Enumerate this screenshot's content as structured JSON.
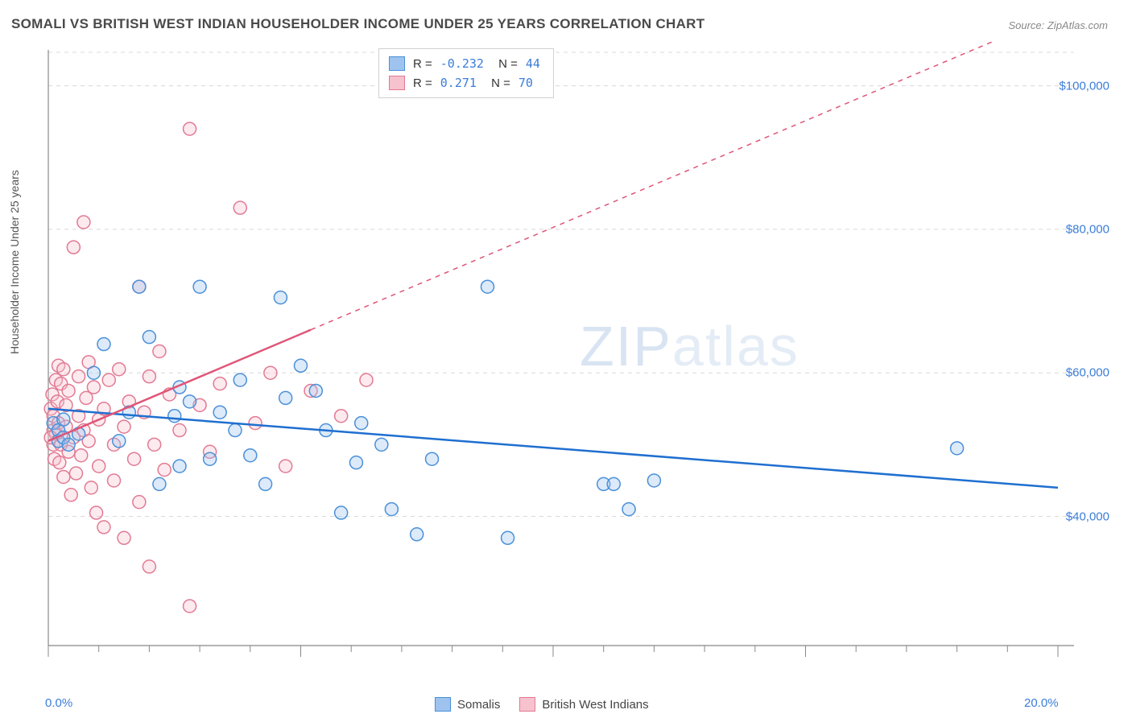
{
  "title": "SOMALI VS BRITISH WEST INDIAN HOUSEHOLDER INCOME UNDER 25 YEARS CORRELATION CHART",
  "source_label": "Source: ZipAtlas.com",
  "ylabel": "Householder Income Under 25 years",
  "watermark_bold": "ZIP",
  "watermark_thin": "atlas",
  "chart": {
    "type": "scatter",
    "background_color": "#ffffff",
    "grid_color": "#d8d8d8",
    "grid_dash": "5,5",
    "axis_color": "#888888",
    "xlim": [
      0,
      20
    ],
    "ylim": [
      22000,
      105000
    ],
    "x_ticks_minor": [
      0,
      1,
      2,
      3,
      4,
      5,
      6,
      7,
      8,
      9,
      10,
      11,
      12,
      13,
      14,
      15,
      16,
      17,
      18,
      19,
      20
    ],
    "x_ticks_major": [
      0,
      5,
      10,
      15,
      20
    ],
    "x_tick_labels": {
      "0": "0.0%",
      "20": "20.0%"
    },
    "y_grid": [
      40000,
      60000,
      80000,
      100000
    ],
    "y_tick_labels": {
      "40000": "$40,000",
      "60000": "$60,000",
      "80000": "$80,000",
      "100000": "$100,000"
    },
    "marker_radius": 8,
    "marker_stroke_width": 1.5,
    "marker_fill_opacity": 0.35,
    "trend_line_width": 2.5,
    "series": {
      "somalis": {
        "label": "Somalis",
        "fill": "#9dc3ee",
        "stroke": "#4a90d9",
        "line_color": "#1f6fd0",
        "R": "-0.232",
        "N": "44",
        "trend": {
          "x1": 0,
          "y1": 55000,
          "x2": 20,
          "y2": 44000,
          "dash": null
        },
        "points": [
          [
            0.1,
            53000
          ],
          [
            0.2,
            50500
          ],
          [
            0.2,
            52000
          ],
          [
            0.3,
            51000
          ],
          [
            0.3,
            53500
          ],
          [
            0.4,
            50000
          ],
          [
            0.9,
            60000
          ],
          [
            1.1,
            64000
          ],
          [
            1.4,
            50500
          ],
          [
            1.6,
            54500
          ],
          [
            1.8,
            72000
          ],
          [
            2.0,
            65000
          ],
          [
            2.2,
            44500
          ],
          [
            2.5,
            54000
          ],
          [
            2.6,
            58000
          ],
          [
            2.6,
            47000
          ],
          [
            2.8,
            56000
          ],
          [
            3.0,
            72000
          ],
          [
            3.2,
            48000
          ],
          [
            3.4,
            54500
          ],
          [
            3.7,
            52000
          ],
          [
            3.8,
            59000
          ],
          [
            4.0,
            48500
          ],
          [
            4.3,
            44500
          ],
          [
            4.6,
            70500
          ],
          [
            4.7,
            56500
          ],
          [
            5.0,
            61000
          ],
          [
            5.3,
            57500
          ],
          [
            5.5,
            52000
          ],
          [
            5.8,
            40500
          ],
          [
            6.1,
            47500
          ],
          [
            6.2,
            53000
          ],
          [
            6.6,
            50000
          ],
          [
            6.8,
            41000
          ],
          [
            7.3,
            37500
          ],
          [
            7.6,
            48000
          ],
          [
            8.7,
            72000
          ],
          [
            9.1,
            37000
          ],
          [
            11.0,
            44500
          ],
          [
            11.2,
            44500
          ],
          [
            11.5,
            41000
          ],
          [
            12.0,
            45000
          ],
          [
            18.0,
            49500
          ],
          [
            0.6,
            51500
          ]
        ]
      },
      "bwi": {
        "label": "British West Indians",
        "fill": "#f6c2cd",
        "stroke": "#e27a93",
        "line_color": "#e05577",
        "R": "0.271",
        "N": "70",
        "trend_solid": {
          "x1": 0,
          "y1": 50500,
          "x2": 5.2,
          "y2": 66000
        },
        "trend_dash": {
          "x1": 5.2,
          "y1": 66000,
          "x2": 20,
          "y2": 110000,
          "dash": "6,6"
        },
        "points": [
          [
            0.05,
            55000
          ],
          [
            0.08,
            57000
          ],
          [
            0.1,
            52000
          ],
          [
            0.1,
            50000
          ],
          [
            0.1,
            54000
          ],
          [
            0.12,
            48000
          ],
          [
            0.15,
            59000
          ],
          [
            0.15,
            51500
          ],
          [
            0.18,
            56000
          ],
          [
            0.2,
            53000
          ],
          [
            0.2,
            61000
          ],
          [
            0.22,
            47500
          ],
          [
            0.25,
            58500
          ],
          [
            0.25,
            50000
          ],
          [
            0.3,
            45500
          ],
          [
            0.3,
            60500
          ],
          [
            0.35,
            52500
          ],
          [
            0.35,
            55500
          ],
          [
            0.4,
            49000
          ],
          [
            0.4,
            57500
          ],
          [
            0.45,
            43000
          ],
          [
            0.5,
            51000
          ],
          [
            0.5,
            77500
          ],
          [
            0.55,
            46000
          ],
          [
            0.6,
            54000
          ],
          [
            0.6,
            59500
          ],
          [
            0.65,
            48500
          ],
          [
            0.7,
            81000
          ],
          [
            0.7,
            52000
          ],
          [
            0.75,
            56500
          ],
          [
            0.8,
            50500
          ],
          [
            0.8,
            61500
          ],
          [
            0.85,
            44000
          ],
          [
            0.9,
            58000
          ],
          [
            0.95,
            40500
          ],
          [
            1.0,
            53500
          ],
          [
            1.0,
            47000
          ],
          [
            1.1,
            55000
          ],
          [
            1.1,
            38500
          ],
          [
            1.2,
            59000
          ],
          [
            1.3,
            50000
          ],
          [
            1.3,
            45000
          ],
          [
            1.4,
            60500
          ],
          [
            1.5,
            52500
          ],
          [
            1.5,
            37000
          ],
          [
            1.6,
            56000
          ],
          [
            1.7,
            48000
          ],
          [
            1.8,
            72000
          ],
          [
            1.8,
            42000
          ],
          [
            1.9,
            54500
          ],
          [
            2.0,
            59500
          ],
          [
            2.0,
            33000
          ],
          [
            2.1,
            50000
          ],
          [
            2.2,
            63000
          ],
          [
            2.3,
            46500
          ],
          [
            2.4,
            57000
          ],
          [
            2.6,
            52000
          ],
          [
            2.8,
            27500
          ],
          [
            2.8,
            94000
          ],
          [
            3.0,
            55500
          ],
          [
            3.2,
            49000
          ],
          [
            3.4,
            58500
          ],
          [
            3.8,
            83000
          ],
          [
            4.1,
            53000
          ],
          [
            4.4,
            60000
          ],
          [
            4.7,
            47000
          ],
          [
            5.2,
            57500
          ],
          [
            5.8,
            54000
          ],
          [
            6.3,
            59000
          ],
          [
            0.05,
            51000
          ]
        ]
      }
    }
  },
  "stats_legend": {
    "value_color": "#3b7dd8"
  }
}
